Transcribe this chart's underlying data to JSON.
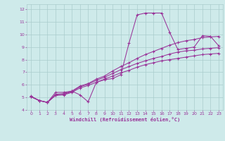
{
  "bg_color": "#ceeaea",
  "grid_color": "#aacccc",
  "line_color": "#993399",
  "xlim": [
    -0.5,
    23.5
  ],
  "ylim": [
    4,
    12.4
  ],
  "xticks": [
    0,
    1,
    2,
    3,
    4,
    5,
    6,
    7,
    8,
    9,
    10,
    11,
    12,
    13,
    14,
    15,
    16,
    17,
    18,
    19,
    20,
    21,
    22,
    23
  ],
  "yticks": [
    4,
    5,
    6,
    7,
    8,
    9,
    10,
    11,
    12
  ],
  "xlabel": "Windchill (Refroidissement éolien,°C)",
  "line1_x": [
    0,
    1,
    2,
    3,
    4,
    5,
    6,
    7,
    8,
    9,
    10,
    11,
    12,
    13,
    14,
    15,
    16,
    17,
    18,
    19,
    20,
    21,
    22,
    23
  ],
  "line1_y": [
    5.1,
    4.75,
    4.6,
    5.4,
    5.4,
    5.5,
    5.2,
    4.65,
    6.2,
    6.4,
    6.5,
    6.8,
    9.3,
    11.55,
    11.7,
    11.7,
    11.7,
    10.15,
    8.8,
    8.9,
    9.0,
    9.9,
    9.85,
    9.1
  ],
  "line2_x": [
    0,
    1,
    2,
    3,
    4,
    5,
    6,
    7,
    8,
    9,
    10,
    11,
    12,
    13,
    14,
    15,
    16,
    17,
    18,
    19,
    20,
    21,
    22,
    23
  ],
  "line2_y": [
    5.05,
    4.75,
    4.6,
    5.25,
    5.3,
    5.5,
    5.9,
    6.1,
    6.45,
    6.7,
    7.1,
    7.45,
    7.75,
    8.1,
    8.4,
    8.65,
    8.9,
    9.15,
    9.35,
    9.5,
    9.6,
    9.75,
    9.8,
    9.85
  ],
  "line3_x": [
    0,
    1,
    2,
    3,
    4,
    5,
    6,
    7,
    8,
    9,
    10,
    11,
    12,
    13,
    14,
    15,
    16,
    17,
    18,
    19,
    20,
    21,
    22,
    23
  ],
  "line3_y": [
    5.05,
    4.75,
    4.6,
    5.2,
    5.25,
    5.45,
    5.85,
    6.05,
    6.35,
    6.6,
    6.9,
    7.2,
    7.45,
    7.7,
    7.9,
    8.1,
    8.25,
    8.45,
    8.6,
    8.7,
    8.75,
    8.85,
    8.9,
    8.95
  ],
  "line4_x": [
    0,
    1,
    2,
    3,
    4,
    5,
    6,
    7,
    8,
    9,
    10,
    11,
    12,
    13,
    14,
    15,
    16,
    17,
    18,
    19,
    20,
    21,
    22,
    23
  ],
  "line4_y": [
    5.05,
    4.75,
    4.6,
    5.15,
    5.2,
    5.4,
    5.75,
    5.95,
    6.2,
    6.45,
    6.7,
    6.95,
    7.15,
    7.4,
    7.6,
    7.75,
    7.9,
    8.0,
    8.1,
    8.2,
    8.3,
    8.4,
    8.45,
    8.5
  ]
}
